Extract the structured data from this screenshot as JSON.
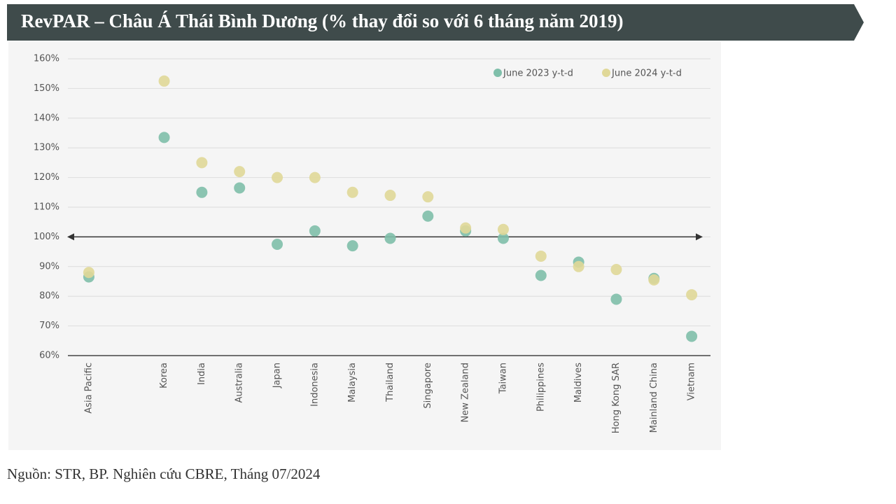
{
  "chart_data": {
    "type": "scatter",
    "title": "RevPAR – Châu Á Thái Bình Dương (% thay đổi so với 6 tháng năm 2019)",
    "source": "Nguồn: STR, BP. Nghiên cứu CBRE, Tháng 07/2024",
    "categories": [
      "Asia Pacific",
      null,
      "Korea",
      "India",
      "Australia",
      "Japan",
      "Indonesia",
      "Malaysia",
      "Thailand",
      "Singapore",
      "New Zealand",
      "Taiwan",
      "Philippines",
      "Maldives",
      "Hong Kong SAR",
      "Mainland China",
      "Vietnam"
    ],
    "series": [
      {
        "name": "June 2023 y-t-d",
        "color": "#7fbfaa",
        "values": [
          86.5,
          null,
          133.5,
          115,
          116.5,
          97.5,
          102,
          97,
          99.5,
          107,
          102,
          99.5,
          87,
          91.5,
          79,
          86,
          66.5
        ]
      },
      {
        "name": "June 2024 y-t-d",
        "color": "#e0d898",
        "values": [
          88,
          null,
          152.5,
          125,
          122,
          120,
          120,
          115,
          114,
          113.5,
          103,
          102.5,
          93.5,
          90,
          89,
          85.5,
          80.5
        ]
      }
    ],
    "reference_line": 100,
    "ylim": [
      60,
      160
    ],
    "yticks": [
      {
        "value": 60,
        "label": "60%"
      },
      {
        "value": 70,
        "label": "70%"
      },
      {
        "value": 80,
        "label": "80%"
      },
      {
        "value": 90,
        "label": "90%"
      },
      {
        "value": 100,
        "label": "100%"
      },
      {
        "value": 110,
        "label": "110%"
      },
      {
        "value": 120,
        "label": "120%"
      },
      {
        "value": 130,
        "label": "130%"
      },
      {
        "value": 140,
        "label": "140%"
      },
      {
        "value": 150,
        "label": "150%"
      },
      {
        "value": 160,
        "label": "160%"
      }
    ],
    "grid": true,
    "legend": "top-right"
  }
}
